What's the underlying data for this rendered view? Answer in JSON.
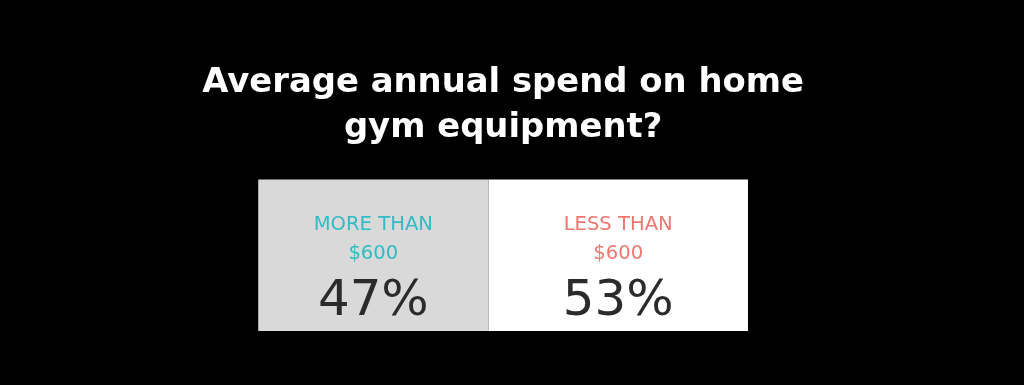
{
  "chart_data": {
    "type": "bar",
    "orientation": "horizontal",
    "stacked": true,
    "tick_labels": false,
    "title": [
      "Average annual spend on home",
      "gym equipment?"
    ],
    "categories": [
      null
    ],
    "series": [
      {
        "name": "MORE THAN $600",
        "color": "#d9d9d9",
        "values": [
          47
        ],
        "value_labels": [
          "47%"
        ]
      },
      {
        "name": "LESS THAN $600",
        "color": "#ffffff",
        "values": [
          53
        ],
        "value_labels": [
          "53%"
        ]
      }
    ]
  }
}
